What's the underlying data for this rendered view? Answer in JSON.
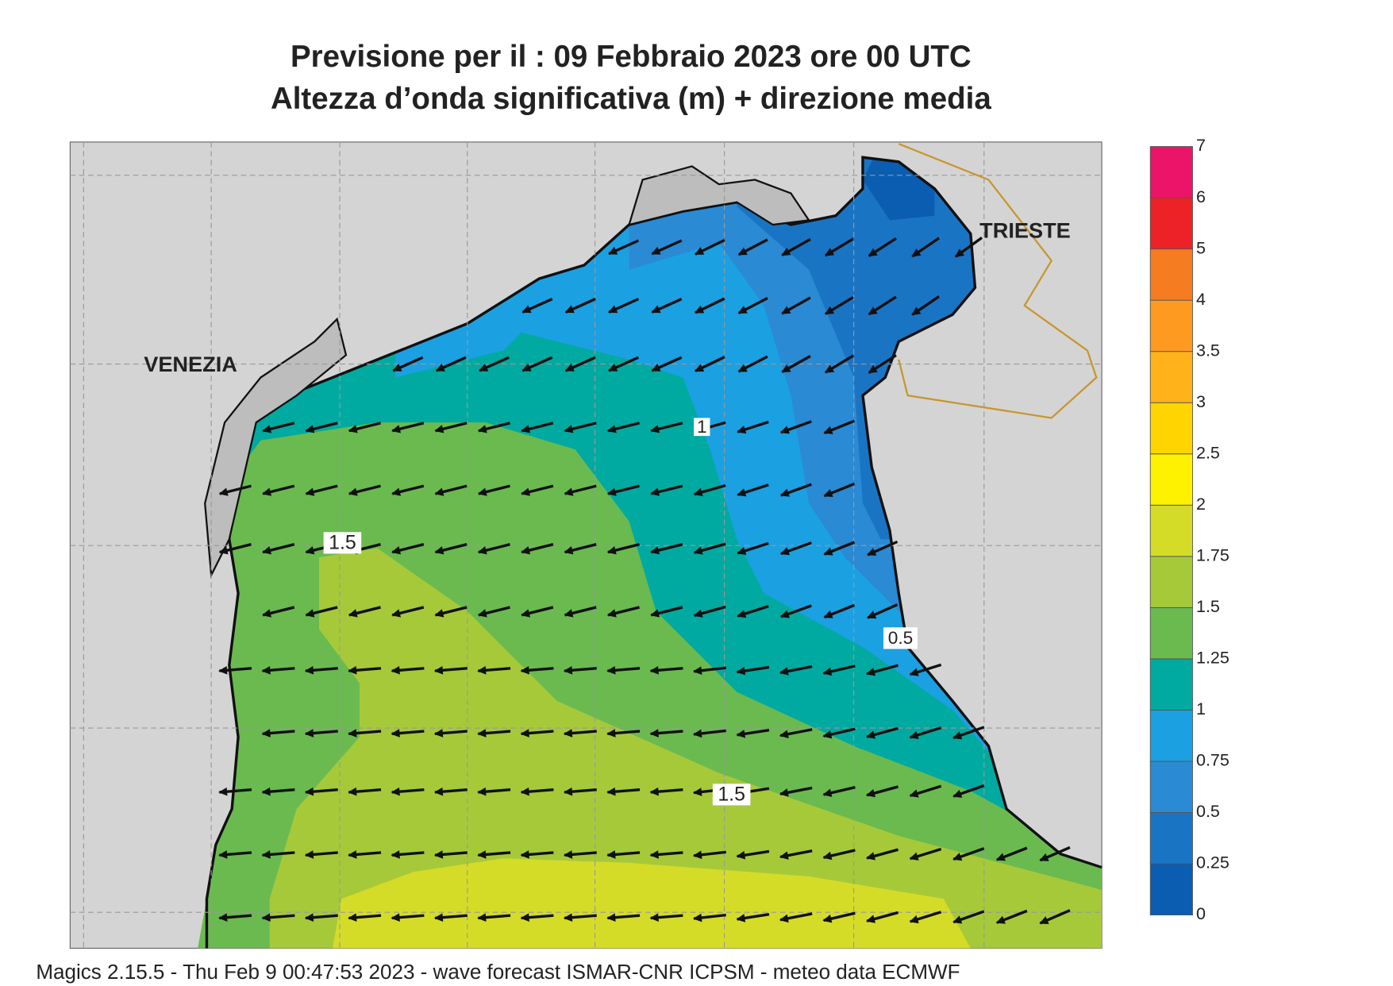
{
  "header": {
    "title": "Previsione per il  :  09  Febbraio 2023   ore 00 UTC",
    "subtitle": "Altezza d’onda significativa (m) + direzione media"
  },
  "places": [
    "VENEZIA",
    "TRIESTE"
  ],
  "contour_labels": [
    "1",
    "1.5",
    "1.5",
    "0.5"
  ],
  "colorbar": {
    "levels": [
      0,
      0.25,
      0.5,
      0.75,
      1,
      1.25,
      1.5,
      1.75,
      2,
      2.5,
      3,
      3.5,
      4,
      5,
      6,
      7
    ],
    "colors": [
      "#0a5db0",
      "#1a74c4",
      "#2a8ad4",
      "#1ba0e2",
      "#00aaa0",
      "#6aba50",
      "#a6c93a",
      "#d4dc28",
      "#fff200",
      "#ffd400",
      "#ffb21a",
      "#ff9a20",
      "#f57c20",
      "#ec2226",
      "#ec1469"
    ]
  },
  "footer": "Magics 2.15.5 - Thu Feb  9 00:47:53 2023 - wave forecast  ISMAR-CNR  ICPSM - meteo data    ECMWF"
}
